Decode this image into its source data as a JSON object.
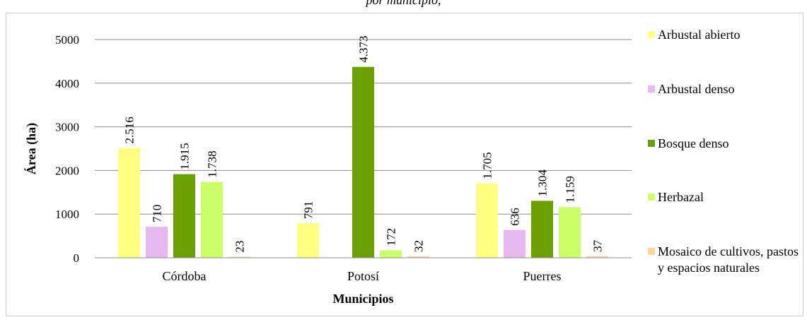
{
  "header": {
    "partial_title": "por municipio, "
  },
  "chart_data": {
    "type": "bar",
    "categories": [
      "Córdoba",
      "Potosí",
      "Puerres"
    ],
    "series": [
      {
        "name": "Arbustal abierto",
        "color": "#ffff80",
        "values": [
          2516,
          791,
          1705
        ],
        "labels": [
          "2.516",
          "791",
          "1.705"
        ]
      },
      {
        "name": "Arbustal denso",
        "color": "#e6b8f0",
        "values": [
          710,
          0,
          636
        ],
        "labels": [
          "710",
          "",
          "636"
        ]
      },
      {
        "name": "Bosque denso",
        "color": "#6aa100",
        "values": [
          1915,
          4373,
          1304
        ],
        "labels": [
          "1.915",
          "4.373",
          "1.304"
        ]
      },
      {
        "name": "Herbazal",
        "color": "#ccff66",
        "values": [
          1738,
          172,
          1159
        ],
        "labels": [
          "1.738",
          "172",
          "1.159"
        ]
      },
      {
        "name": "Mosaico de cultivos, pastos y espacios naturales",
        "color": "#fbd59c",
        "values": [
          23,
          32,
          37
        ],
        "labels": [
          "23",
          "32",
          "37"
        ]
      }
    ],
    "xlabel": "Municipios",
    "ylabel": "Área (ha)",
    "ylim": [
      0,
      5000
    ],
    "yticks": [
      0,
      1000,
      2000,
      3000,
      4000,
      5000
    ],
    "grid": true,
    "legend_position": "right"
  }
}
